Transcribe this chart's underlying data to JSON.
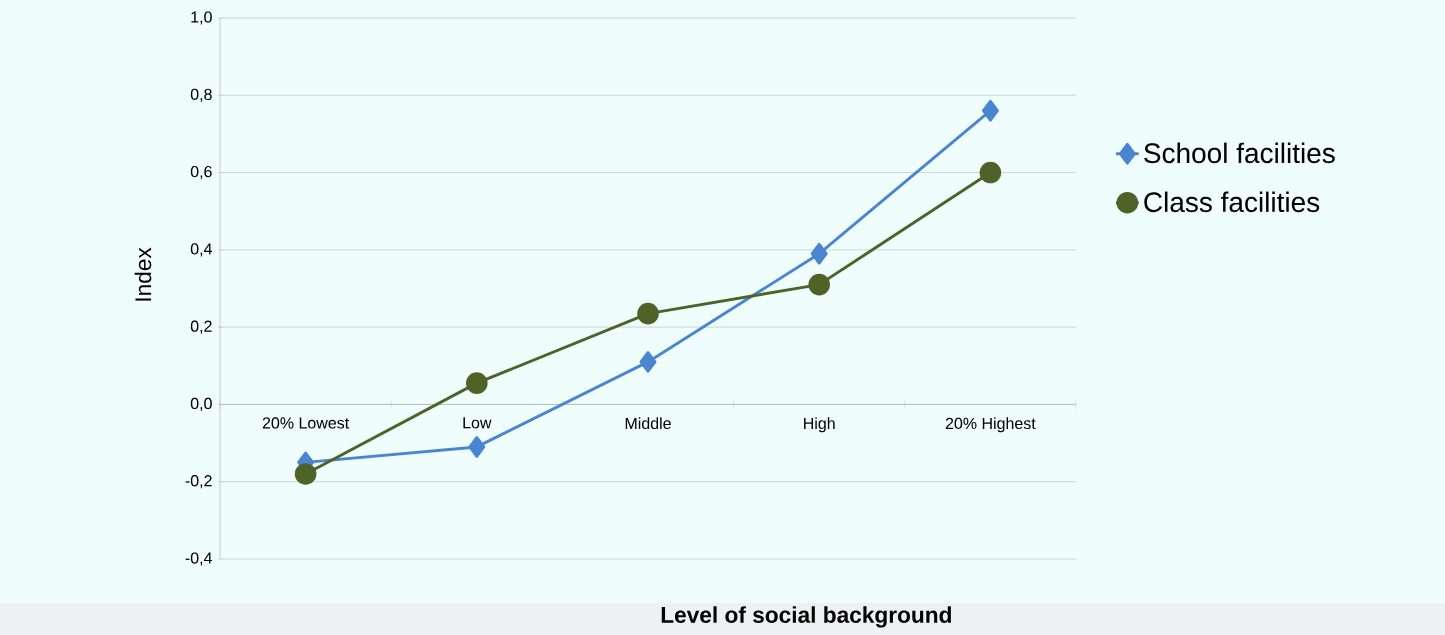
{
  "chart_data": {
    "type": "line",
    "xlabel": "Level of social background",
    "ylabel": "Index",
    "categories": [
      "20% Lowest",
      "Low",
      "Middle",
      "High",
      "20% Highest"
    ],
    "series": [
      {
        "name": "School facilities",
        "color": "#4a86d0",
        "marker": "diamond",
        "values": [
          -0.15,
          -0.11,
          0.11,
          0.39,
          0.76
        ]
      },
      {
        "name": "Class facilities",
        "color": "#4f6228",
        "marker": "circle",
        "values": [
          -0.18,
          0.055,
          0.235,
          0.31,
          0.6
        ]
      }
    ],
    "ylim": [
      -0.4,
      1.0
    ],
    "yticks": [
      {
        "value": -0.4,
        "label": "-0,4"
      },
      {
        "value": -0.2,
        "label": "-0,2"
      },
      {
        "value": 0,
        "label": "0,0"
      },
      {
        "value": 0.2,
        "label": "0,2"
      },
      {
        "value": 0.4,
        "label": "0,4"
      },
      {
        "value": 0.6,
        "label": "0,6"
      },
      {
        "value": 0.8,
        "label": "0,8"
      },
      {
        "value": 1.0,
        "label": "1,0"
      }
    ],
    "grid": "y",
    "legend": "right",
    "line_style": "solid"
  }
}
